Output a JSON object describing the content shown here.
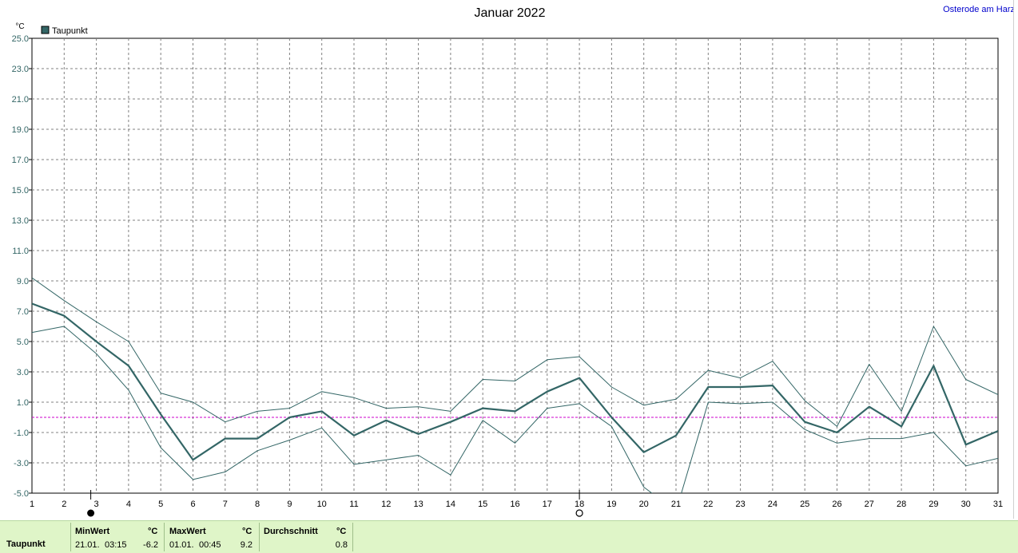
{
  "header": {
    "title": "Januar 2022",
    "station": "Osterode am Harz",
    "unit": "°C"
  },
  "legend": {
    "label": "Taupunkt",
    "color": "#336666"
  },
  "chart_data": {
    "type": "line",
    "title": "Januar 2022",
    "ylabel": "°C",
    "x": [
      1,
      2,
      3,
      4,
      5,
      6,
      7,
      8,
      9,
      10,
      11,
      12,
      13,
      14,
      15,
      16,
      17,
      18,
      19,
      20,
      21,
      22,
      23,
      24,
      25,
      26,
      27,
      28,
      29,
      30,
      31
    ],
    "xlim": [
      1,
      31
    ],
    "ylim": [
      -5.0,
      25.0
    ],
    "y_ticks": [
      "25.0",
      "23.0",
      "21.0",
      "19.0",
      "17.0",
      "15.0",
      "13.0",
      "11.0",
      "9.0",
      "7.0",
      "5.0",
      "3.0",
      "1.0",
      "-1.0",
      "-3.0",
      "-5.0"
    ],
    "grid": true,
    "reference_line": 0.0,
    "series": [
      {
        "name": "Taupunkt",
        "role": "mean",
        "values": [
          7.5,
          6.7,
          5.0,
          3.4,
          0.2,
          -2.8,
          -1.4,
          -1.4,
          0.0,
          0.4,
          -1.2,
          -0.2,
          -1.1,
          -0.3,
          0.6,
          0.4,
          1.7,
          2.6,
          0.0,
          -2.3,
          -1.2,
          2.0,
          2.0,
          2.1,
          -0.3,
          -1.0,
          0.7,
          -0.6,
          3.4,
          -1.8,
          -0.9
        ]
      },
      {
        "role": "max",
        "values": [
          9.2,
          7.7,
          6.3,
          5.0,
          1.6,
          1.0,
          -0.3,
          0.4,
          0.6,
          1.7,
          1.3,
          0.6,
          0.7,
          0.4,
          2.5,
          2.4,
          3.8,
          4.0,
          2.0,
          0.8,
          1.2,
          3.1,
          2.6,
          3.7,
          1.1,
          -0.6,
          3.5,
          0.4,
          6.0,
          2.5,
          1.5
        ]
      },
      {
        "role": "min",
        "values": [
          5.6,
          6.0,
          4.2,
          1.8,
          -2.0,
          -4.1,
          -3.6,
          -2.2,
          -1.5,
          -0.7,
          -3.1,
          -2.8,
          -2.5,
          -3.8,
          -0.2,
          -1.7,
          0.6,
          0.9,
          -0.6,
          -4.6,
          -6.2,
          1.0,
          0.9,
          1.0,
          -0.8,
          -1.7,
          -1.4,
          -1.4,
          -1.0,
          -3.2,
          -2.7
        ]
      }
    ]
  },
  "markers": {
    "filled_circle_day": 3,
    "open_circle_day": 18
  },
  "stats": {
    "row_label": "Taupunkt",
    "min": {
      "header": "MinWert",
      "unit": "°C",
      "date": "21.01.",
      "time": "03:15",
      "value": "-6.2"
    },
    "max": {
      "header": "MaxWert",
      "unit": "°C",
      "date": "01.01.",
      "time": "00:45",
      "value": "9.2"
    },
    "avg": {
      "header": "Durchschnitt",
      "unit": "°C",
      "value": "0.8"
    }
  }
}
